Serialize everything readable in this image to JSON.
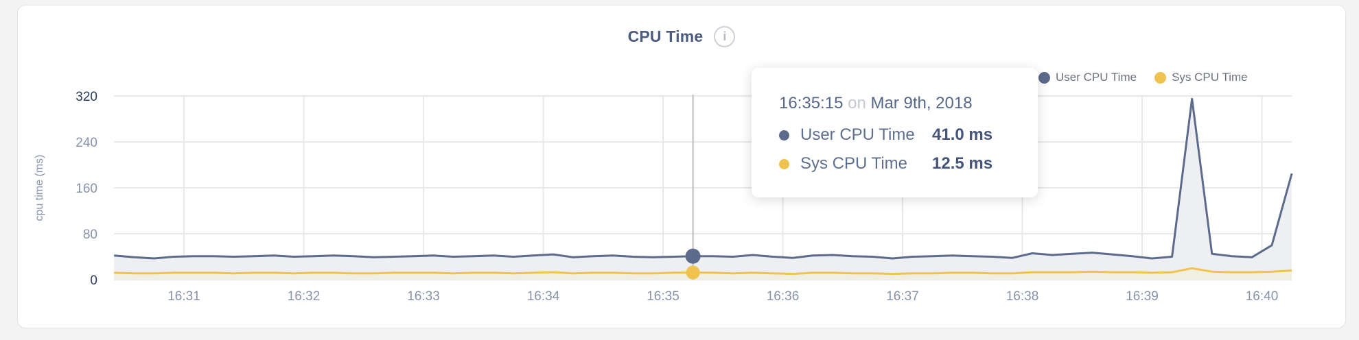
{
  "panel": {
    "title": "CPU Time",
    "info_icon": "i"
  },
  "legend": [
    {
      "name": "User CPU Time",
      "color": "#5c6b8c"
    },
    {
      "name": "Sys CPU Time",
      "color": "#f0c24f"
    }
  ],
  "tooltip": {
    "time": "16:35:15",
    "connector": "on",
    "date": "Mar 9th, 2018",
    "rows": [
      {
        "name": "User CPU Time",
        "value": "41.0 ms",
        "color": "#5c6b8c"
      },
      {
        "name": "Sys CPU Time",
        "value": "12.5 ms",
        "color": "#f0c24f"
      }
    ]
  },
  "chart_data": {
    "type": "area",
    "title": "CPU Time",
    "xlabel": "",
    "ylabel": "cpu time (ms)",
    "ylim": [
      0,
      320
    ],
    "y_ticks": [
      0,
      80,
      160,
      240,
      320
    ],
    "x_ticks": [
      "16:31",
      "16:32",
      "16:33",
      "16:34",
      "16:35",
      "16:36",
      "16:37",
      "16:38",
      "16:39",
      "16:40"
    ],
    "x_start": "16:30:25",
    "x_step_seconds": 10,
    "grid": true,
    "legend_position": "top-right",
    "hover": {
      "time": "16:35:15",
      "values": {
        "User CPU Time": 41.0,
        "Sys CPU Time": 12.5
      }
    },
    "series": [
      {
        "name": "User CPU Time",
        "color": "#5c6b8c",
        "fill": "#edeff2",
        "values": [
          42,
          39,
          37,
          40,
          41,
          41,
          40,
          41,
          42,
          40,
          41,
          42,
          41,
          39,
          40,
          41,
          42,
          40,
          41,
          42,
          40,
          42,
          44,
          39,
          41,
          42,
          40,
          39,
          40,
          41,
          41,
          40,
          43,
          40,
          38,
          42,
          43,
          41,
          40,
          37,
          40,
          41,
          42,
          41,
          40,
          38,
          46,
          43,
          45,
          47,
          44,
          41,
          37,
          40,
          315,
          45,
          41,
          39,
          60,
          185
        ]
      },
      {
        "name": "Sys CPU Time",
        "color": "#f0c24f",
        "fill": "#f1eee2",
        "values": [
          12,
          11,
          11,
          12,
          12,
          12,
          11,
          12,
          12,
          11,
          12,
          12,
          11,
          11,
          12,
          12,
          12,
          11,
          12,
          12,
          11,
          12,
          13,
          11,
          12,
          12,
          11,
          11,
          12,
          12.5,
          12,
          11,
          12,
          11,
          10,
          12,
          12,
          11,
          11,
          10,
          11,
          11,
          12,
          12,
          11,
          11,
          13,
          13,
          13,
          14,
          13,
          13,
          12,
          13,
          20,
          14,
          13,
          13,
          14,
          16
        ]
      }
    ],
    "colors": {
      "grid": "#e9e9eb",
      "crosshair": "#c9c9c9",
      "axis_label_light": "#8693aa",
      "axis_label_dark": "#2c3d5f",
      "page_background": "#f4f4f5",
      "card_background": "#ffffff"
    }
  }
}
